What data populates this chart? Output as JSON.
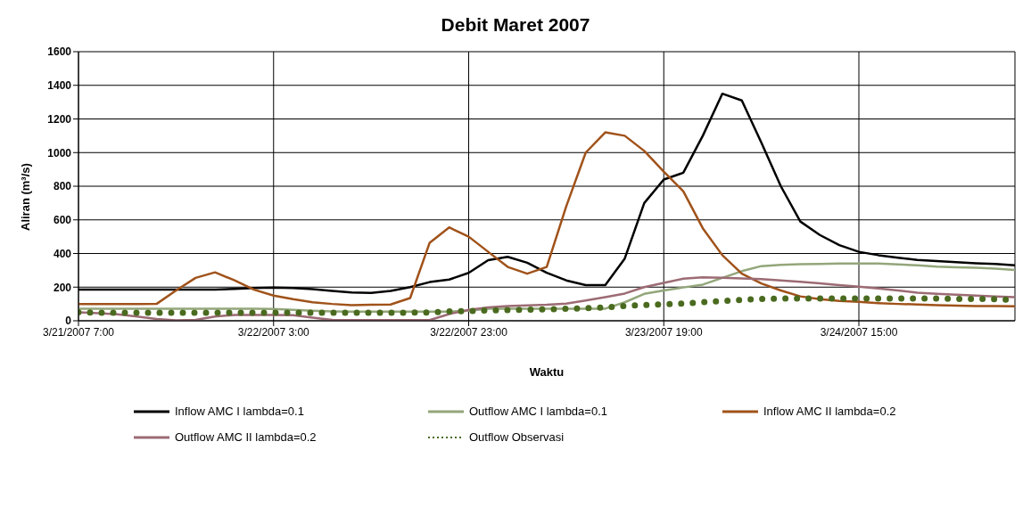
{
  "chart_data": {
    "type": "line",
    "title": "Debit Maret 2007",
    "xlabel": "Waktu",
    "ylabel": "Aliran (m³/s)",
    "x": [
      "2007-03-21T07:00",
      "2007-03-21T09:00",
      "2007-03-21T11:00",
      "2007-03-21T13:00",
      "2007-03-21T15:00",
      "2007-03-21T17:00",
      "2007-03-21T19:00",
      "2007-03-21T21:00",
      "2007-03-21T23:00",
      "2007-03-22T01:00",
      "2007-03-22T03:00",
      "2007-03-22T05:00",
      "2007-03-22T07:00",
      "2007-03-22T09:00",
      "2007-03-22T11:00",
      "2007-03-22T13:00",
      "2007-03-22T15:00",
      "2007-03-22T17:00",
      "2007-03-22T19:00",
      "2007-03-22T21:00",
      "2007-03-22T23:00",
      "2007-03-23T01:00",
      "2007-03-23T03:00",
      "2007-03-23T05:00",
      "2007-03-23T07:00",
      "2007-03-23T09:00",
      "2007-03-23T11:00",
      "2007-03-23T13:00",
      "2007-03-23T15:00",
      "2007-03-23T17:00",
      "2007-03-23T19:00",
      "2007-03-23T21:00",
      "2007-03-23T23:00",
      "2007-03-24T01:00",
      "2007-03-24T03:00",
      "2007-03-24T05:00",
      "2007-03-24T07:00",
      "2007-03-24T09:00",
      "2007-03-24T11:00",
      "2007-03-24T13:00",
      "2007-03-24T15:00",
      "2007-03-24T17:00",
      "2007-03-24T19:00",
      "2007-03-24T21:00",
      "2007-03-24T23:00",
      "2007-03-25T01:00",
      "2007-03-25T03:00",
      "2007-03-25T05:00",
      "2007-03-25T07:00"
    ],
    "series": [
      {
        "name": "Inflow AMC I lambda=0.1",
        "color": "#000000",
        "values": [
          185,
          185,
          185,
          185,
          185,
          185,
          185,
          186,
          190,
          195,
          197,
          195,
          188,
          178,
          168,
          166,
          178,
          200,
          230,
          245,
          285,
          360,
          380,
          345,
          285,
          240,
          212,
          212,
          370,
          700,
          840,
          880,
          1100,
          1350,
          1310,
          1060,
          800,
          590,
          510,
          450,
          410,
          390,
          375,
          362,
          355,
          348,
          342,
          338,
          330
        ]
      },
      {
        "name": "Outflow AMC I lambda=0.1",
        "color": "#93a67a",
        "values": [
          72,
          72,
          72,
          72,
          72,
          72,
          72,
          72,
          72,
          72,
          70,
          65,
          60,
          56,
          54,
          54,
          54,
          54,
          54,
          54,
          60,
          72,
          72,
          72,
          72,
          72,
          72,
          72,
          110,
          160,
          180,
          198,
          215,
          255,
          295,
          325,
          333,
          337,
          338,
          340,
          340,
          340,
          335,
          330,
          322,
          318,
          315,
          310,
          302
        ]
      },
      {
        "name": "Inflow AMC II lambda=0.2",
        "color": "#a0521a",
        "values": [
          99,
          99,
          99,
          99,
          100,
          180,
          255,
          288,
          240,
          185,
          150,
          128,
          110,
          100,
          93,
          95,
          97,
          135,
          464,
          555,
          500,
          410,
          320,
          280,
          320,
          680,
          1000,
          1120,
          1100,
          1010,
          887,
          770,
          550,
          390,
          280,
          222,
          180,
          145,
          128,
          118,
          112,
          105,
          100,
          97,
          93,
          90,
          88,
          87,
          86
        ]
      },
      {
        "name": "Outflow AMC II lambda=0.2",
        "color": "#9c6b74",
        "values": [
          50,
          45,
          38,
          25,
          10,
          3,
          5,
          25,
          35,
          35,
          35,
          33,
          18,
          5,
          4,
          4,
          4,
          4,
          4,
          40,
          65,
          80,
          88,
          92,
          95,
          102,
          120,
          140,
          162,
          200,
          225,
          250,
          258,
          255,
          252,
          248,
          240,
          232,
          222,
          212,
          203,
          192,
          180,
          167,
          160,
          155,
          150,
          145,
          140
        ]
      },
      {
        "name": "Outflow Observasi",
        "color": "#4a6b1f",
        "line_style": "dotted",
        "values": [
          50,
          48,
          48,
          48,
          48,
          48,
          48,
          48,
          48,
          48,
          48,
          48,
          48,
          48,
          48,
          48,
          48,
          48,
          50,
          55,
          58,
          62,
          64,
          66,
          68,
          72,
          74,
          80,
          88,
          94,
          98,
          103,
          110,
          118,
          124,
          130,
          132,
          132,
          132,
          132,
          132,
          132,
          132,
          132,
          132,
          130,
          130,
          128,
          125
        ]
      }
    ],
    "xlim": [
      "2007-03-21T07:00",
      "2007-03-25T07:00"
    ],
    "xticks": [
      {
        "value": "2007-03-21T07:00",
        "label": "3/21/2007 7:00"
      },
      {
        "value": "2007-03-22T03:00",
        "label": "3/22/2007 3:00"
      },
      {
        "value": "2007-03-22T23:00",
        "label": "3/22/2007 23:00"
      },
      {
        "value": "2007-03-23T19:00",
        "label": "3/23/2007 19:00"
      },
      {
        "value": "2007-03-24T15:00",
        "label": "3/24/2007 15:00"
      }
    ],
    "ylim": [
      0,
      1600
    ],
    "yticks": [
      0,
      200,
      400,
      600,
      800,
      1000,
      1200,
      1400,
      1600
    ],
    "grid": true,
    "legend": "bottom",
    "line_style": "solid",
    "marker": "none"
  }
}
